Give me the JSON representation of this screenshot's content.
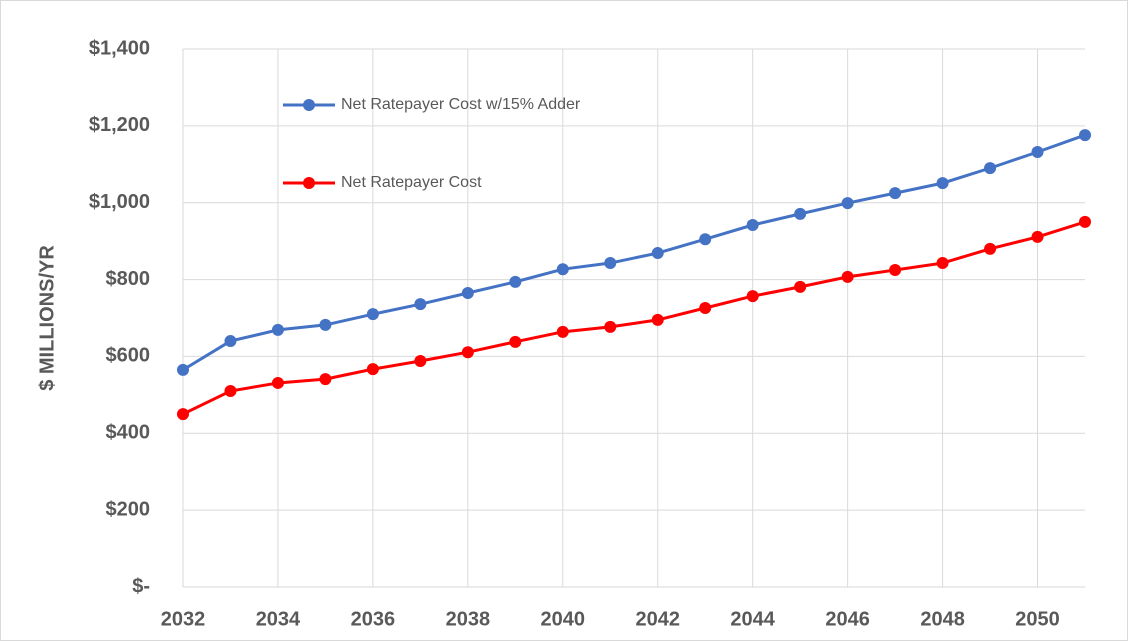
{
  "chart_data": {
    "type": "line",
    "y_label": "$ MILLIONS/YR",
    "x": [
      2032,
      2033,
      2034,
      2035,
      2036,
      2037,
      2038,
      2039,
      2040,
      2041,
      2042,
      2043,
      2044,
      2045,
      2046,
      2047,
      2048,
      2049,
      2050,
      2051
    ],
    "series": [
      {
        "name": "Net Ratepayer Cost w/15% Adder",
        "color": "#4472c4",
        "values": [
          565,
          640,
          669,
          682,
          710,
          736,
          765,
          794,
          827,
          843,
          869,
          905,
          942,
          971,
          999,
          1025,
          1051,
          1090,
          1132,
          1176
        ]
      },
      {
        "name": "Net Ratepayer Cost",
        "color": "#ff0000",
        "values": [
          450,
          510,
          531,
          541,
          567,
          588,
          611,
          638,
          664,
          677,
          695,
          726,
          757,
          781,
          807,
          825,
          843,
          880,
          911,
          950
        ]
      }
    ],
    "xlim": [
      2032,
      2051
    ],
    "xticks": [
      2032,
      2034,
      2036,
      2038,
      2040,
      2042,
      2044,
      2046,
      2048,
      2050
    ],
    "ylim": [
      0,
      1400
    ],
    "yticks": [
      {
        "value": 0,
        "label": "$-"
      },
      {
        "value": 200,
        "label": "$200"
      },
      {
        "value": 400,
        "label": "$400"
      },
      {
        "value": 600,
        "label": "$600"
      },
      {
        "value": 800,
        "label": "$800"
      },
      {
        "value": 1000,
        "label": "$1,000"
      },
      {
        "value": 1200,
        "label": "$1,200"
      },
      {
        "value": 1400,
        "label": "$1,400"
      }
    ],
    "grid": true,
    "legend": "upper left"
  }
}
